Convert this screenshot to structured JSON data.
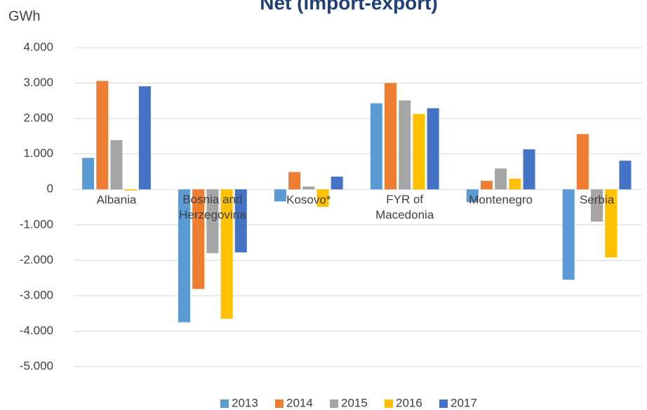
{
  "chart_data": {
    "type": "bar",
    "title": "Net (import-export)",
    "y_label": "GWh",
    "categories": [
      "Albania",
      "Bosnia and Herzegovina",
      "Kosovo*",
      "FYR of Macedonia",
      "Montenegro",
      "Serbia"
    ],
    "series": [
      {
        "name": "2013",
        "color": "#5b9bd5",
        "values": [
          890,
          -3750,
          -340,
          2430,
          -360,
          -2550
        ]
      },
      {
        "name": "2014",
        "color": "#ed7d31",
        "values": [
          3060,
          -2810,
          490,
          3000,
          240,
          1560
        ]
      },
      {
        "name": "2015",
        "color": "#a5a5a5",
        "values": [
          1390,
          -1800,
          80,
          2510,
          590,
          -910
        ]
      },
      {
        "name": "2016",
        "color": "#ffc000",
        "values": [
          -30,
          -3650,
          -490,
          2130,
          300,
          -1920
        ]
      },
      {
        "name": "2017",
        "color": "#4472c4",
        "values": [
          2910,
          -1780,
          360,
          2290,
          1130,
          810
        ]
      }
    ],
    "ylim": [
      -5000,
      4000
    ],
    "yticks": [
      {
        "value": -5000,
        "label": "-5.000"
      },
      {
        "value": -4000,
        "label": "-4.000"
      },
      {
        "value": -3000,
        "label": "-3.000"
      },
      {
        "value": -2000,
        "label": "-2.000"
      },
      {
        "value": -1000,
        "label": "-1.000"
      },
      0,
      {
        "value": 1000,
        "label": "1.000"
      },
      {
        "value": 2000,
        "label": "2.000"
      },
      {
        "value": 3000,
        "label": "3.000"
      },
      {
        "value": 4000,
        "label": "4.000"
      }
    ],
    "grid": true,
    "legend": "bottom"
  }
}
